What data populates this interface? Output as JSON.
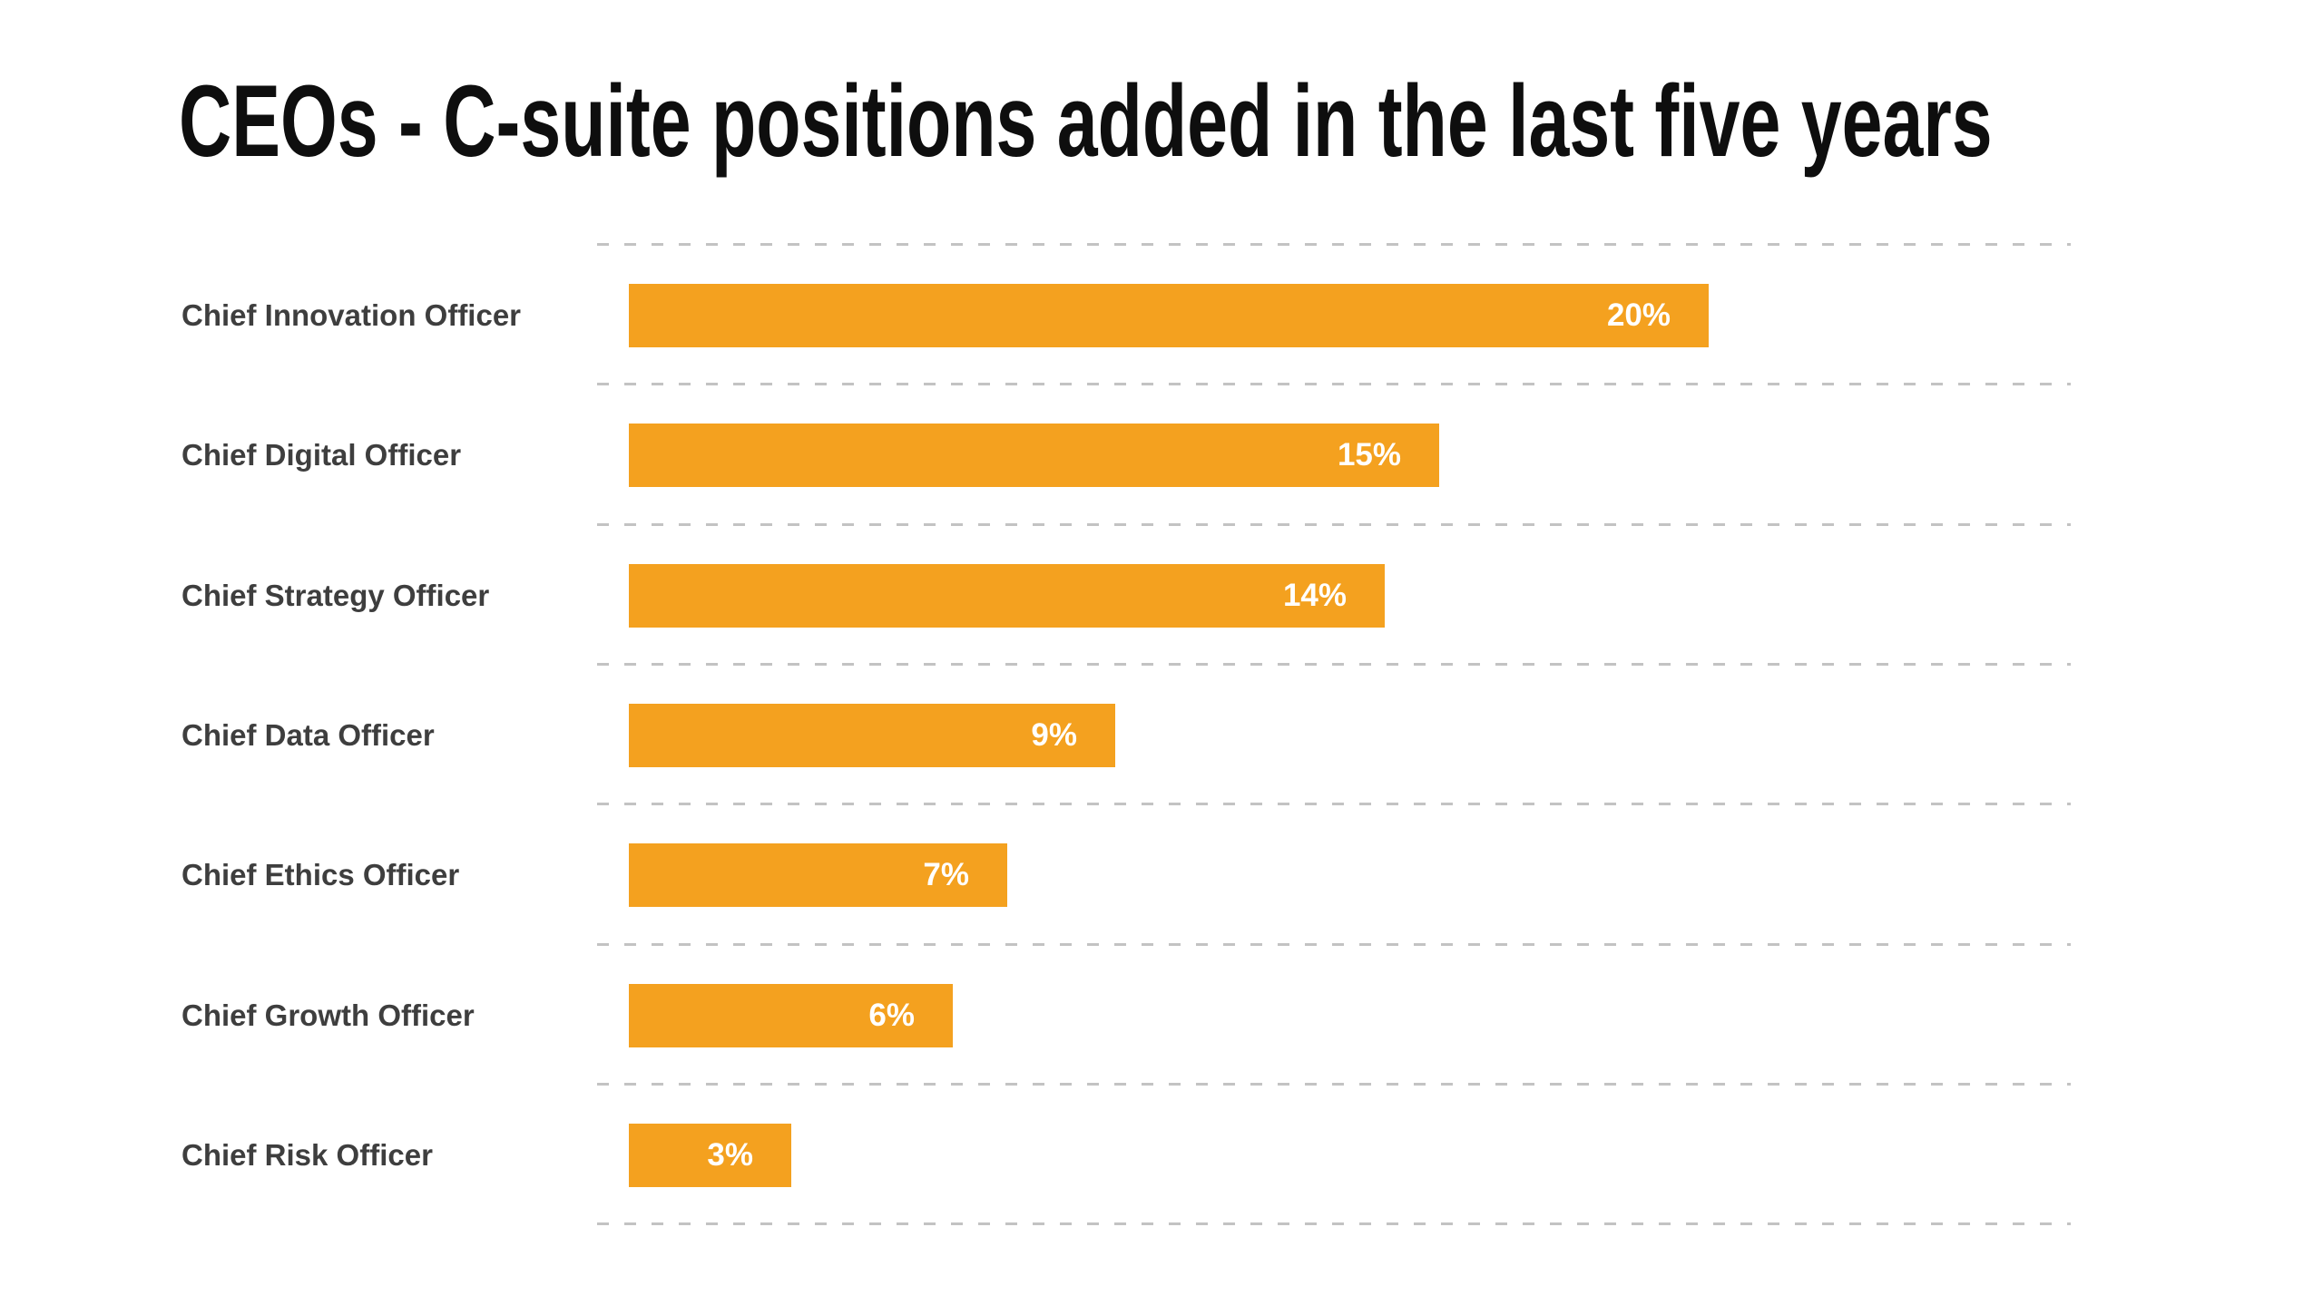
{
  "page": {
    "background_color": "#ffffff"
  },
  "title": "CEOs - C-suite positions added in the last five years",
  "chart_data": {
    "type": "bar",
    "orientation": "horizontal",
    "title": "CEOs - C-suite positions added in the last five years",
    "categories": [
      "Chief Innovation Officer",
      "Chief Digital Officer",
      "Chief Strategy Officer",
      "Chief Data Officer",
      "Chief Ethics Officer",
      "Chief Growth Officer",
      "Chief Risk Officer"
    ],
    "values": [
      20,
      15,
      14,
      9,
      7,
      6,
      3
    ],
    "value_labels": [
      "20%",
      "15%",
      "14%",
      "9%",
      "7%",
      "6%",
      "3%"
    ],
    "xlabel": "",
    "ylabel": "",
    "xlim": [
      0,
      26.7
    ],
    "grid": "dashed horizontal gridlines between rows",
    "legend": "none",
    "bar_color": "#f4a11f",
    "value_label_color": "#ffffff",
    "category_label_color": "#3e3e3e",
    "gridline_color": "#c3c3c3",
    "title_color": "#0e0e0e"
  }
}
